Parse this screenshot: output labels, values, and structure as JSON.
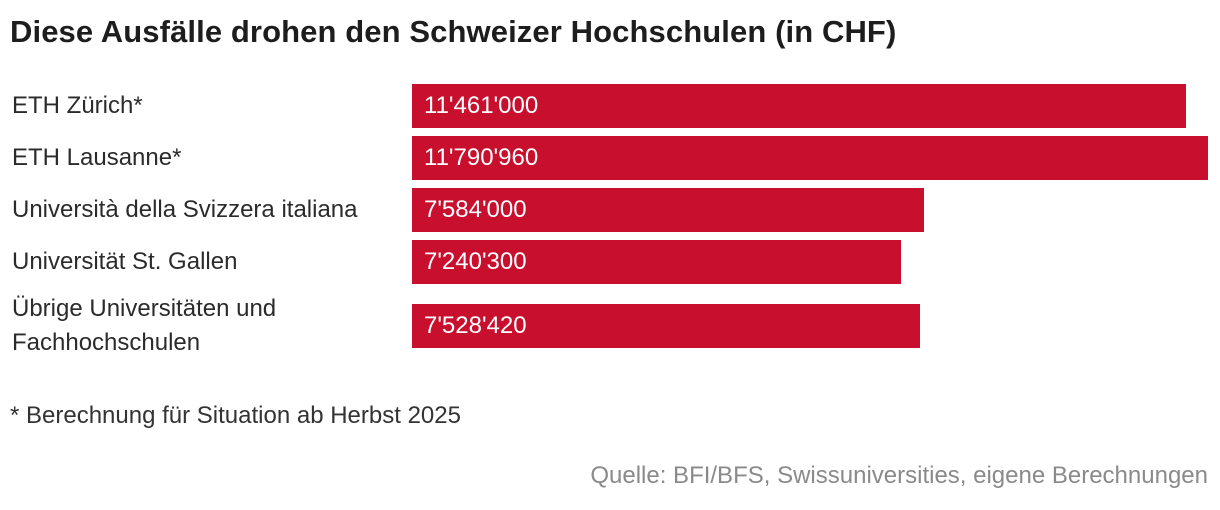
{
  "chart_data": {
    "type": "bar",
    "orientation": "horizontal",
    "title": "Diese Ausfälle drohen den Schweizer Hochschulen (in CHF)",
    "categories": [
      "ETH Zürich*",
      "ETH Lausanne*",
      "Università della Svizzera italiana",
      "Universität St. Gallen",
      "Übrige Universitäten und Fachhochschulen"
    ],
    "values": [
      11461000,
      11790960,
      7584000,
      7240300,
      7528420
    ],
    "value_labels": [
      "11'461'000",
      "11'790'960",
      "7'584'000",
      "7'240'300",
      "7'528'420"
    ],
    "bar_color": "#c8102e",
    "xlim": [
      0,
      11790960
    ],
    "grid": false,
    "legend": "none"
  },
  "footnote": "* Berechnung für Situation ab Herbst 2025",
  "source": "Quelle: BFI/BFS, Swissuniversities, eigene Berechnungen"
}
